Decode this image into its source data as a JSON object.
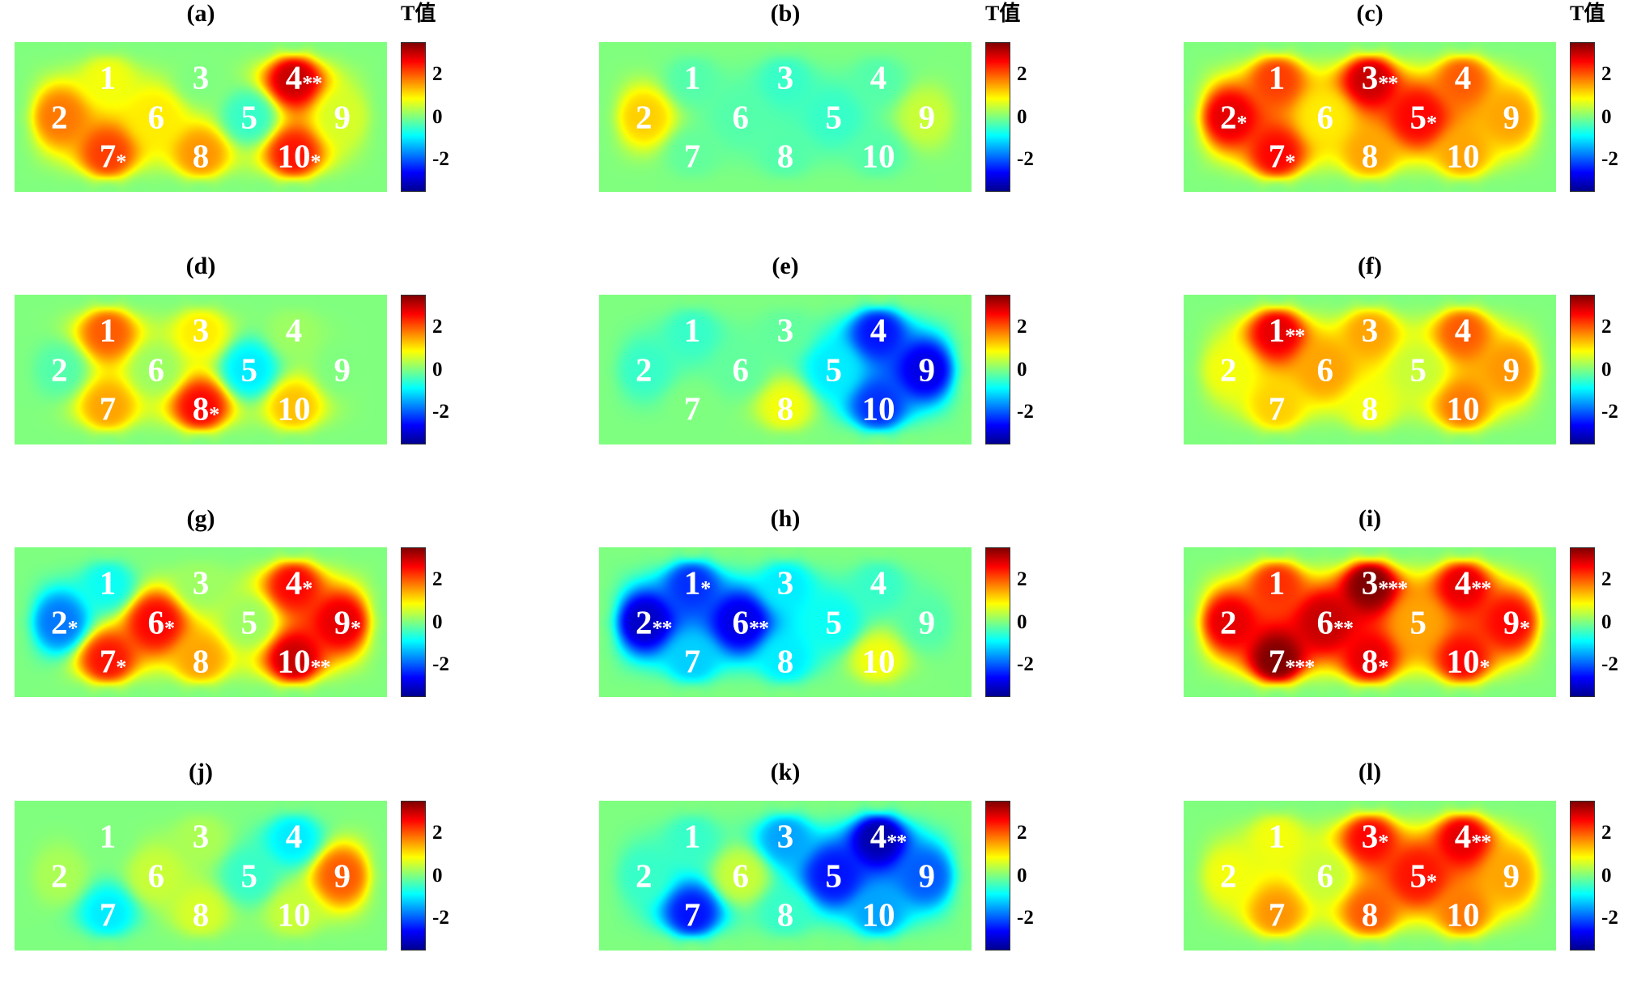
{
  "chart_data": {
    "type": "heatmap",
    "colormap": "jet",
    "colorbar": {
      "label": "T值",
      "range": [
        -3.5,
        3.5
      ],
      "ticks": [
        "2",
        "0",
        "-2"
      ]
    },
    "panels": [
      {
        "title": "(a)",
        "show_colorbar_label": true,
        "electrodes": [
          {
            "label": "1",
            "t": 0.8,
            "sig": ""
          },
          {
            "label": "2",
            "t": 1.8,
            "sig": ""
          },
          {
            "label": "3",
            "t": 0.0,
            "sig": ""
          },
          {
            "label": "4",
            "t": 3.0,
            "sig": "**"
          },
          {
            "label": "5",
            "t": -0.5,
            "sig": ""
          },
          {
            "label": "6",
            "t": 1.0,
            "sig": ""
          },
          {
            "label": "7",
            "t": 2.2,
            "sig": "*"
          },
          {
            "label": "8",
            "t": 1.6,
            "sig": ""
          },
          {
            "label": "9",
            "t": 0.6,
            "sig": ""
          },
          {
            "label": "10",
            "t": 2.5,
            "sig": "*"
          }
        ]
      },
      {
        "title": "(b)",
        "show_colorbar_label": true,
        "electrodes": [
          {
            "label": "1",
            "t": -0.3,
            "sig": ""
          },
          {
            "label": "2",
            "t": 1.2,
            "sig": ""
          },
          {
            "label": "3",
            "t": -0.5,
            "sig": ""
          },
          {
            "label": "4",
            "t": -0.3,
            "sig": ""
          },
          {
            "label": "5",
            "t": -0.5,
            "sig": ""
          },
          {
            "label": "6",
            "t": -0.3,
            "sig": ""
          },
          {
            "label": "7",
            "t": -0.2,
            "sig": ""
          },
          {
            "label": "8",
            "t": -0.3,
            "sig": ""
          },
          {
            "label": "9",
            "t": 0.5,
            "sig": ""
          },
          {
            "label": "10",
            "t": -0.3,
            "sig": ""
          }
        ]
      },
      {
        "title": "(c)",
        "show_colorbar_label": true,
        "electrodes": [
          {
            "label": "1",
            "t": 2.2,
            "sig": ""
          },
          {
            "label": "2",
            "t": 2.8,
            "sig": "*"
          },
          {
            "label": "3",
            "t": 3.0,
            "sig": "**"
          },
          {
            "label": "4",
            "t": 2.0,
            "sig": ""
          },
          {
            "label": "5",
            "t": 2.6,
            "sig": "*"
          },
          {
            "label": "6",
            "t": 1.0,
            "sig": ""
          },
          {
            "label": "7",
            "t": 2.6,
            "sig": "*"
          },
          {
            "label": "8",
            "t": 1.5,
            "sig": ""
          },
          {
            "label": "9",
            "t": 1.5,
            "sig": ""
          },
          {
            "label": "10",
            "t": 1.5,
            "sig": ""
          }
        ]
      },
      {
        "title": "(d)",
        "show_colorbar_label": false,
        "electrodes": [
          {
            "label": "1",
            "t": 2.0,
            "sig": ""
          },
          {
            "label": "2",
            "t": -0.3,
            "sig": ""
          },
          {
            "label": "3",
            "t": 1.0,
            "sig": ""
          },
          {
            "label": "4",
            "t": 0.2,
            "sig": ""
          },
          {
            "label": "5",
            "t": -1.0,
            "sig": ""
          },
          {
            "label": "6",
            "t": 0.2,
            "sig": ""
          },
          {
            "label": "7",
            "t": 1.5,
            "sig": ""
          },
          {
            "label": "8",
            "t": 2.6,
            "sig": "*"
          },
          {
            "label": "9",
            "t": 0.0,
            "sig": ""
          },
          {
            "label": "10",
            "t": 1.3,
            "sig": ""
          }
        ]
      },
      {
        "title": "(e)",
        "show_colorbar_label": false,
        "electrodes": [
          {
            "label": "1",
            "t": -0.5,
            "sig": ""
          },
          {
            "label": "2",
            "t": -0.5,
            "sig": ""
          },
          {
            "label": "3",
            "t": -0.2,
            "sig": ""
          },
          {
            "label": "4",
            "t": -2.5,
            "sig": ""
          },
          {
            "label": "5",
            "t": -1.0,
            "sig": ""
          },
          {
            "label": "6",
            "t": -0.2,
            "sig": ""
          },
          {
            "label": "7",
            "t": 0.0,
            "sig": ""
          },
          {
            "label": "8",
            "t": 0.8,
            "sig": ""
          },
          {
            "label": "9",
            "t": -2.8,
            "sig": ""
          },
          {
            "label": "10",
            "t": -2.3,
            "sig": ""
          }
        ]
      },
      {
        "title": "(f)",
        "show_colorbar_label": false,
        "electrodes": [
          {
            "label": "1",
            "t": 2.8,
            "sig": "**"
          },
          {
            "label": "2",
            "t": 0.8,
            "sig": ""
          },
          {
            "label": "3",
            "t": 1.5,
            "sig": ""
          },
          {
            "label": "4",
            "t": 2.0,
            "sig": ""
          },
          {
            "label": "5",
            "t": 0.5,
            "sig": ""
          },
          {
            "label": "6",
            "t": 1.5,
            "sig": ""
          },
          {
            "label": "7",
            "t": 1.2,
            "sig": ""
          },
          {
            "label": "8",
            "t": 0.8,
            "sig": ""
          },
          {
            "label": "9",
            "t": 1.6,
            "sig": ""
          },
          {
            "label": "10",
            "t": 1.8,
            "sig": ""
          }
        ]
      },
      {
        "title": "(g)",
        "show_colorbar_label": false,
        "electrodes": [
          {
            "label": "1",
            "t": -0.8,
            "sig": ""
          },
          {
            "label": "2",
            "t": -1.8,
            "sig": "*"
          },
          {
            "label": "3",
            "t": 0.2,
            "sig": ""
          },
          {
            "label": "4",
            "t": 2.6,
            "sig": "*"
          },
          {
            "label": "5",
            "t": 0.2,
            "sig": ""
          },
          {
            "label": "6",
            "t": 2.6,
            "sig": "*"
          },
          {
            "label": "7",
            "t": 2.5,
            "sig": "*"
          },
          {
            "label": "8",
            "t": 1.5,
            "sig": ""
          },
          {
            "label": "9",
            "t": 2.8,
            "sig": "*"
          },
          {
            "label": "10",
            "t": 3.0,
            "sig": "**"
          }
        ]
      },
      {
        "title": "(h)",
        "show_colorbar_label": false,
        "electrodes": [
          {
            "label": "1",
            "t": -2.3,
            "sig": "*"
          },
          {
            "label": "2",
            "t": -3.0,
            "sig": "**"
          },
          {
            "label": "3",
            "t": -1.0,
            "sig": ""
          },
          {
            "label": "4",
            "t": -0.5,
            "sig": ""
          },
          {
            "label": "5",
            "t": -0.8,
            "sig": ""
          },
          {
            "label": "6",
            "t": -2.8,
            "sig": "**"
          },
          {
            "label": "7",
            "t": -1.2,
            "sig": ""
          },
          {
            "label": "8",
            "t": -1.0,
            "sig": ""
          },
          {
            "label": "9",
            "t": -0.3,
            "sig": ""
          },
          {
            "label": "10",
            "t": 0.8,
            "sig": ""
          }
        ]
      },
      {
        "title": "(i)",
        "show_colorbar_label": false,
        "electrodes": [
          {
            "label": "1",
            "t": 2.3,
            "sig": ""
          },
          {
            "label": "2",
            "t": 2.8,
            "sig": ""
          },
          {
            "label": "3",
            "t": 3.5,
            "sig": "***"
          },
          {
            "label": "4",
            "t": 2.8,
            "sig": "**"
          },
          {
            "label": "5",
            "t": 1.5,
            "sig": ""
          },
          {
            "label": "6",
            "t": 3.0,
            "sig": "**"
          },
          {
            "label": "7",
            "t": 3.5,
            "sig": "***"
          },
          {
            "label": "8",
            "t": 2.8,
            "sig": "*"
          },
          {
            "label": "9",
            "t": 2.6,
            "sig": "*"
          },
          {
            "label": "10",
            "t": 2.6,
            "sig": "*"
          }
        ]
      },
      {
        "title": "(j)",
        "show_colorbar_label": false,
        "electrodes": [
          {
            "label": "1",
            "t": 0.0,
            "sig": ""
          },
          {
            "label": "2",
            "t": 0.3,
            "sig": ""
          },
          {
            "label": "3",
            "t": 0.3,
            "sig": ""
          },
          {
            "label": "4",
            "t": -1.0,
            "sig": ""
          },
          {
            "label": "5",
            "t": -0.5,
            "sig": ""
          },
          {
            "label": "6",
            "t": 0.5,
            "sig": ""
          },
          {
            "label": "7",
            "t": -1.0,
            "sig": ""
          },
          {
            "label": "8",
            "t": 0.6,
            "sig": ""
          },
          {
            "label": "9",
            "t": 2.0,
            "sig": ""
          },
          {
            "label": "10",
            "t": 0.5,
            "sig": ""
          }
        ]
      },
      {
        "title": "(k)",
        "show_colorbar_label": false,
        "electrodes": [
          {
            "label": "1",
            "t": -0.5,
            "sig": ""
          },
          {
            "label": "2",
            "t": -0.5,
            "sig": ""
          },
          {
            "label": "3",
            "t": -1.5,
            "sig": ""
          },
          {
            "label": "4",
            "t": -3.2,
            "sig": "**"
          },
          {
            "label": "5",
            "t": -2.5,
            "sig": ""
          },
          {
            "label": "6",
            "t": 0.5,
            "sig": ""
          },
          {
            "label": "7",
            "t": -2.5,
            "sig": ""
          },
          {
            "label": "8",
            "t": -0.5,
            "sig": ""
          },
          {
            "label": "9",
            "t": -2.0,
            "sig": ""
          },
          {
            "label": "10",
            "t": -1.5,
            "sig": ""
          }
        ]
      },
      {
        "title": "(l)",
        "show_colorbar_label": false,
        "electrodes": [
          {
            "label": "1",
            "t": 0.8,
            "sig": ""
          },
          {
            "label": "2",
            "t": 0.8,
            "sig": ""
          },
          {
            "label": "3",
            "t": 2.6,
            "sig": "*"
          },
          {
            "label": "4",
            "t": 2.8,
            "sig": "**"
          },
          {
            "label": "5",
            "t": 2.5,
            "sig": "*"
          },
          {
            "label": "6",
            "t": 0.5,
            "sig": ""
          },
          {
            "label": "7",
            "t": 1.6,
            "sig": ""
          },
          {
            "label": "8",
            "t": 2.0,
            "sig": ""
          },
          {
            "label": "9",
            "t": 1.5,
            "sig": ""
          },
          {
            "label": "10",
            "t": 1.8,
            "sig": ""
          }
        ]
      }
    ]
  }
}
